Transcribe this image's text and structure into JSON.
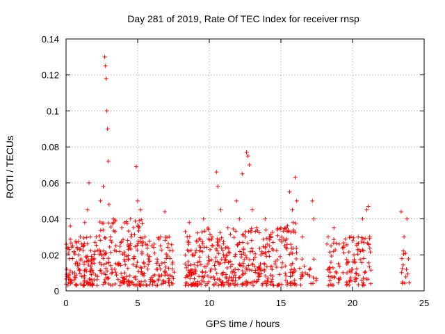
{
  "chart_data": {
    "type": "scatter",
    "title": "Day 281 of 2019, Rate Of TEC Index for receiver rnsp",
    "xlabel": "GPS time / hours",
    "ylabel": "ROTI / TECUs",
    "xlim": [
      0,
      25
    ],
    "ylim": [
      0,
      0.14
    ],
    "xticks": [
      0,
      5,
      10,
      15,
      20,
      25
    ],
    "yticks": [
      0,
      0.02,
      0.04,
      0.06,
      0.08,
      0.1,
      0.12,
      0.14
    ],
    "xtick_labels": [
      "0",
      "5",
      "10",
      "15",
      "20",
      "25"
    ],
    "ytick_labels": [
      "0",
      "0.02",
      "0.04",
      "0.06",
      "0.08",
      "0.1",
      "0.12",
      "0.14"
    ],
    "grid": true,
    "marker": "+",
    "color": "#ff0000",
    "series": [
      {
        "name": "ROTI",
        "x": [
          0.05,
          0.15,
          0.3,
          0.45,
          0.6,
          0.8,
          0.9,
          1.0,
          1.1,
          1.2,
          1.3,
          1.4,
          1.5,
          1.6,
          1.7,
          1.8,
          1.9,
          2.0,
          2.1,
          2.2,
          2.4,
          2.5,
          2.6,
          2.7,
          2.75,
          2.8,
          2.85,
          2.9,
          2.95,
          3.0,
          3.1,
          3.2,
          3.3,
          3.5,
          3.7,
          3.9,
          4.1,
          4.3,
          4.5,
          4.7,
          4.9,
          5.0,
          5.1,
          5.2,
          5.3,
          5.5,
          5.7,
          6.0,
          6.3,
          6.6,
          6.9,
          7.0,
          7.2,
          7.4,
          8.6,
          8.8,
          9.0,
          9.3,
          9.6,
          9.9,
          10.2,
          10.5,
          10.6,
          10.8,
          11.0,
          11.3,
          11.6,
          11.9,
          12.1,
          12.3,
          12.5,
          12.6,
          12.7,
          12.8,
          13.0,
          13.3,
          13.6,
          13.9,
          14.2,
          14.6,
          15.0,
          15.3,
          15.6,
          15.8,
          16.0,
          16.1,
          16.5,
          16.7,
          17.2,
          17.3,
          18.3,
          18.5,
          18.7,
          18.9,
          19.4,
          19.6,
          19.9,
          20.1,
          20.4,
          20.7,
          21.0,
          21.1,
          21.2,
          23.4,
          23.6,
          23.8
        ],
        "y": [
          0.012,
          0.024,
          0.036,
          0.018,
          0.01,
          0.015,
          0.02,
          0.03,
          0.008,
          0.025,
          0.038,
          0.012,
          0.045,
          0.06,
          0.03,
          0.015,
          0.01,
          0.022,
          0.03,
          0.008,
          0.05,
          0.02,
          0.058,
          0.13,
          0.125,
          0.118,
          0.1,
          0.09,
          0.072,
          0.048,
          0.03,
          0.012,
          0.04,
          0.022,
          0.015,
          0.035,
          0.01,
          0.028,
          0.04,
          0.018,
          0.069,
          0.05,
          0.035,
          0.045,
          0.01,
          0.03,
          0.02,
          0.025,
          0.012,
          0.03,
          0.044,
          0.018,
          0.03,
          0.008,
          0.038,
          0.02,
          0.012,
          0.025,
          0.04,
          0.015,
          0.03,
          0.066,
          0.058,
          0.045,
          0.02,
          0.035,
          0.01,
          0.05,
          0.04,
          0.065,
          0.03,
          0.077,
          0.075,
          0.07,
          0.045,
          0.035,
          0.02,
          0.04,
          0.03,
          0.015,
          0.035,
          0.028,
          0.055,
          0.045,
          0.063,
          0.05,
          0.03,
          0.01,
          0.05,
          0.04,
          0.03,
          0.025,
          0.035,
          0.01,
          0.025,
          0.015,
          0.03,
          0.02,
          0.03,
          0.04,
          0.045,
          0.047,
          0.03,
          0.044,
          0.03,
          0.04
        ],
        "dense_bands": [
          {
            "from": 0.0,
            "to": 2.2,
            "ymin": 0.003,
            "ymax": 0.03,
            "density": 0.5
          },
          {
            "from": 2.3,
            "to": 5.5,
            "ymin": 0.003,
            "ymax": 0.04,
            "density": 0.5
          },
          {
            "from": 5.5,
            "to": 7.6,
            "ymin": 0.003,
            "ymax": 0.03,
            "density": 0.35
          },
          {
            "from": 8.3,
            "to": 14.5,
            "ymin": 0.003,
            "ymax": 0.035,
            "density": 0.5
          },
          {
            "from": 14.6,
            "to": 16.1,
            "ymin": 0.003,
            "ymax": 0.04,
            "density": 0.45
          },
          {
            "from": 16.3,
            "to": 17.5,
            "ymin": 0.003,
            "ymax": 0.018,
            "density": 0.15
          },
          {
            "from": 18.2,
            "to": 19.2,
            "ymin": 0.003,
            "ymax": 0.03,
            "density": 0.3
          },
          {
            "from": 19.3,
            "to": 21.3,
            "ymin": 0.003,
            "ymax": 0.03,
            "density": 0.35
          },
          {
            "from": 23.3,
            "to": 24.0,
            "ymin": 0.004,
            "ymax": 0.025,
            "density": 0.2
          }
        ]
      }
    ]
  }
}
